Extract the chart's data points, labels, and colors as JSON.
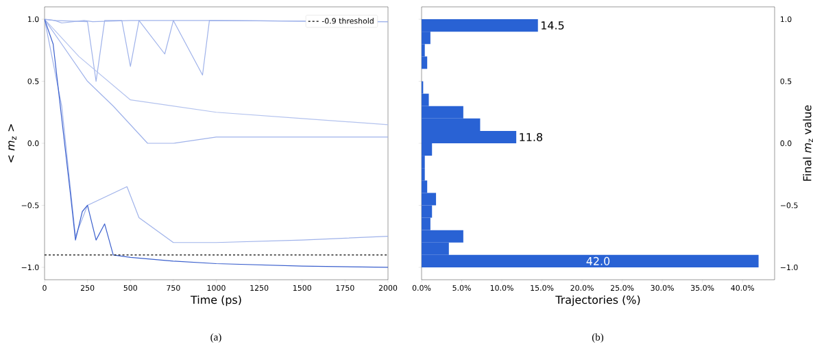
{
  "chart_data": [
    {
      "type": "line",
      "xlabel": "Time (ps)",
      "ylabel": "< *m*$_{z}$ >",
      "xlim": [
        0,
        2000
      ],
      "ylim": [
        -1.1,
        1.1
      ],
      "xticks": [
        0,
        250,
        500,
        750,
        1000,
        1250,
        1500,
        1750,
        2000
      ],
      "yticks": [
        {
          "value": -1.0,
          "label": "−1.0"
        },
        {
          "value": -0.5,
          "label": "−0.5"
        },
        {
          "value": 0.0,
          "label": "0.0"
        },
        {
          "value": 0.5,
          "label": "0.5"
        },
        {
          "value": 1.0,
          "label": "1.0"
        }
      ],
      "series": [
        {
          "color": "#9fb2ea",
          "x": [
            0,
            60,
            100,
            230,
            280,
            500,
            1000,
            2000
          ],
          "values": [
            1.0,
            0.99,
            0.97,
            0.99,
            0.98,
            0.99,
            0.99,
            0.98
          ]
        },
        {
          "color": "#9fb2ea",
          "x": [
            0,
            60,
            250,
            300,
            350,
            450,
            500,
            550,
            700,
            750,
            920,
            960,
            2000
          ],
          "values": [
            1.0,
            0.99,
            0.98,
            0.5,
            0.99,
            0.99,
            0.62,
            0.99,
            0.72,
            0.99,
            0.55,
            0.99,
            0.98
          ]
        },
        {
          "color": "#b3c2ee",
          "x": [
            0,
            200,
            500,
            1000,
            1500,
            2000
          ],
          "values": [
            1.0,
            0.7,
            0.35,
            0.25,
            0.2,
            0.15
          ]
        },
        {
          "color": "#9fb2ea",
          "x": [
            0,
            100,
            250,
            400,
            500,
            600,
            750,
            1000,
            1500,
            2000
          ],
          "values": [
            1.0,
            0.8,
            0.5,
            0.3,
            0.15,
            0.0,
            0.0,
            0.05,
            0.05,
            0.05
          ]
        },
        {
          "color": "#9fb2ea",
          "x": [
            0,
            100,
            180,
            250,
            480,
            550,
            750,
            1000,
            1500,
            2000
          ],
          "values": [
            1.0,
            0.3,
            -0.75,
            -0.5,
            -0.35,
            -0.6,
            -0.8,
            -0.8,
            -0.78,
            -0.75
          ]
        },
        {
          "color": "#3a5fcd",
          "x": [
            0,
            50,
            100,
            150,
            180,
            220,
            250,
            300,
            350,
            400,
            500,
            750,
            1000,
            1500,
            2000
          ],
          "values": [
            1.0,
            0.8,
            0.2,
            -0.4,
            -0.78,
            -0.55,
            -0.5,
            -0.78,
            -0.65,
            -0.9,
            -0.92,
            -0.95,
            -0.97,
            -0.99,
            -1.0
          ]
        }
      ],
      "ref_lines": [
        {
          "axis": "y",
          "value": -0.9,
          "label": "-0.9 threshold",
          "color": "#000000",
          "line_style": "dashed"
        }
      ],
      "legend": "top right",
      "annotations": [
        "(a)"
      ]
    },
    {
      "type": "histogram",
      "orientation": "horizontal",
      "xlabel": "Trajectories (%)",
      "ylabel": "Final *m*$_{z}$ value",
      "color": "#2962d4",
      "bins": [
        -1.0,
        -0.9,
        -0.8,
        -0.7,
        -0.6,
        -0.5,
        -0.4,
        -0.3,
        -0.2,
        -0.1,
        0.0,
        0.1,
        0.2,
        0.3,
        0.4,
        0.5,
        0.6,
        0.7,
        0.8,
        0.9,
        1.0
      ],
      "values": [
        42.0,
        3.4,
        5.2,
        1.1,
        1.3,
        1.8,
        0.7,
        0.4,
        0.4,
        1.3,
        11.8,
        7.3,
        5.2,
        0.9,
        0.2,
        0,
        0.7,
        0.4,
        1.1,
        14.5
      ],
      "value_labels": [
        "42.0",
        null,
        null,
        null,
        null,
        null,
        null,
        null,
        null,
        null,
        "11.8",
        null,
        null,
        null,
        null,
        null,
        null,
        null,
        null,
        "14.5"
      ],
      "xlim": [
        0,
        44
      ],
      "ylim": [
        -1.1,
        1.1
      ],
      "xticks": [
        {
          "value": 0,
          "label": "0.0%"
        },
        {
          "value": 5,
          "label": "5.0%"
        },
        {
          "value": 10,
          "label": "10.0%"
        },
        {
          "value": 15,
          "label": "15.0%"
        },
        {
          "value": 20,
          "label": "20.0%"
        },
        {
          "value": 25,
          "label": "25.0%"
        },
        {
          "value": 30,
          "label": "30.0%"
        },
        {
          "value": 35,
          "label": "35.0%"
        },
        {
          "value": 40,
          "label": "40.0%"
        }
      ],
      "yticks": [
        {
          "value": -1.0,
          "label": "−1.0"
        },
        {
          "value": -0.5,
          "label": "−0.5"
        },
        {
          "value": 0.0,
          "label": "0.0"
        },
        {
          "value": 0.5,
          "label": "0.5"
        },
        {
          "value": 1.0,
          "label": "1.0"
        }
      ],
      "annotations": [
        "(b)"
      ]
    }
  ]
}
